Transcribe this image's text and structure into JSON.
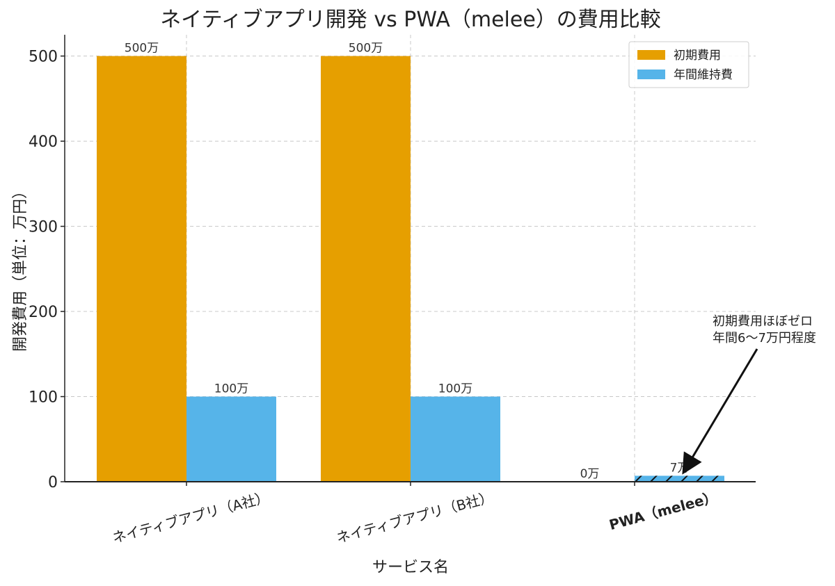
{
  "chart_data": {
    "type": "bar",
    "title": "ネイティブアプリ開発 vs PWA（melee）の費用比較",
    "xlabel": "サービス名",
    "ylabel": "開発費用（単位：万円）",
    "categories": [
      "ネイティブアプリ（A社）",
      "ネイティブアプリ（B社）",
      "PWA（melee）"
    ],
    "highlight_category_index": 2,
    "series": [
      {
        "name": "初期費用",
        "values": [
          500,
          500,
          0
        ],
        "color": "#E69F00"
      },
      {
        "name": "年間維持費",
        "values": [
          100,
          100,
          7
        ],
        "color": "#56B4E9"
      }
    ],
    "data_labels": [
      [
        "500万",
        "500万",
        "0万"
      ],
      [
        "100万",
        "100万",
        "7万"
      ]
    ],
    "hatched": [
      [
        false,
        false,
        false
      ],
      [
        false,
        false,
        true
      ]
    ],
    "ylim": [
      0,
      525
    ],
    "yticks": [
      0,
      100,
      200,
      300,
      400,
      500
    ],
    "grid": true,
    "legend_position": "top-right",
    "annotation": {
      "lines": [
        "初期費用ほぼゼロ",
        "年間6〜7万円程度"
      ],
      "target_category_index": 2,
      "target_series_index": 1,
      "target_value": 7
    }
  }
}
